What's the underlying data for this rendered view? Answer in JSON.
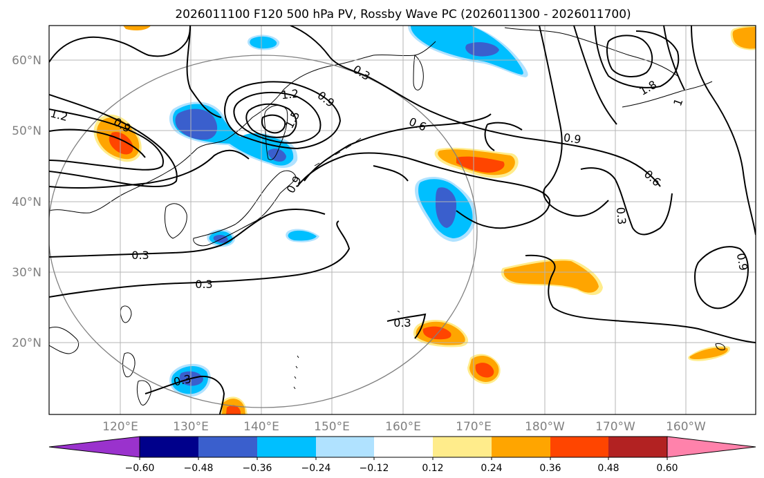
{
  "title": "2026011100 F120 500 hPa PV, Rossby Wave PC (2026011300 - 2026011700)",
  "lat_labels": [
    "60°N",
    "50°N",
    "40°N",
    "30°N",
    "20°N"
  ],
  "lon_labels": [
    "120°E",
    "130°E",
    "140°E",
    "150°E",
    "160°E",
    "170°E",
    "180°W",
    "170°W",
    "160°W"
  ],
  "colorbar": {
    "ticks": [
      "−0.60",
      "−0.48",
      "−0.36",
      "−0.24",
      "−0.12",
      "0.12",
      "0.24",
      "0.36",
      "0.48",
      "0.60"
    ],
    "colors": [
      "#9a32cd",
      "#00008b",
      "#3a5fcd",
      "#00bfff",
      "#b0e2ff",
      "#ffffff",
      "#ffec8b",
      "#ffa500",
      "#ff4500",
      "#b22222",
      "#ff82ab"
    ]
  },
  "contour_labels": [
    "1.2",
    "0.9",
    "0.3",
    "1.2",
    "0.9",
    "1.5",
    "0.6",
    "0.9",
    "0.9",
    "1.8",
    "1",
    "0.6",
    "0.3",
    "0.9",
    "0.3",
    "0.3",
    "0.3",
    "0.3"
  ],
  "colors": {
    "pos_light": "#ffec8b",
    "pos_mid": "#ffa500",
    "pos_strong": "#ff4500",
    "neg_light": "#b0e2ff",
    "neg_mid": "#00bfff",
    "neg_strong": "#3a5fcd"
  }
}
